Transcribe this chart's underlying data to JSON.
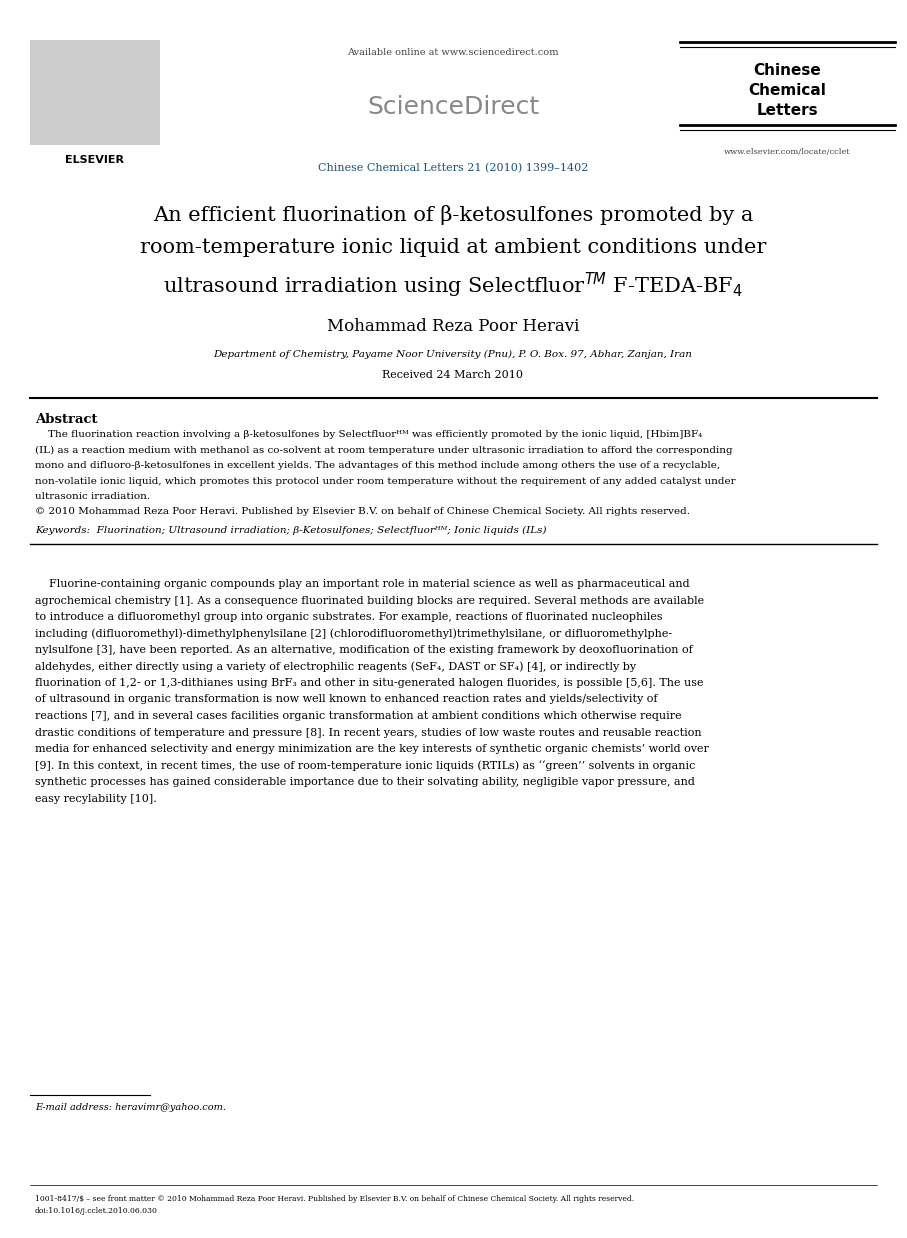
{
  "bg_color": "#ffffff",
  "page_width": 9.07,
  "page_height": 12.38,
  "header": {
    "available_online": "Available online at www.sciencedirect.com",
    "sciencedirect": "ScienceDirect",
    "journal_info": "Chinese Chemical Letters 21 (2010) 1399–1402",
    "journal_name_line1": "Chinese",
    "journal_name_line2": "Chemical",
    "journal_name_line3": "Letters",
    "elsevier": "ELSEVIER",
    "url": "www.elsevier.com/locate/cclet"
  },
  "title_line1": "An efficient fluorination of β-ketosulfones promoted by a",
  "title_line2": "room-temperature ionic liquid at ambient conditions under",
  "title_line3_part1": "ultrasound irradiation using Selectfluor",
  "title_line3_sup": "TM",
  "title_line3_part2": " F-TEDA-BF",
  "title_line3_sub": "4",
  "author": "Mohammad Reza Poor Heravi",
  "affiliation": "Department of Chemistry, Payame Noor University (Pnu), P. O. Box. 97, Abhar, Zanjan, Iran",
  "received": "Received 24 March 2010",
  "abstract_title": "Abstract",
  "abstract_text_lines": [
    "    The fluorination reaction involving a β-ketosulfones by Selectfluorᴴᴹ was efficiently promoted by the ionic liquid, [Hbim]BF₄",
    "(IL) as a reaction medium with methanol as co-solvent at room temperature under ultrasonic irradiation to afford the corresponding",
    "mono and difluoro-β-ketosulfones in excellent yields. The advantages of this method include among others the use of a recyclable,",
    "non-volatile ionic liquid, which promotes this protocol under room temperature without the requirement of any added catalyst under",
    "ultrasonic irradiation.",
    "© 2010 Mohammad Reza Poor Heravi. Published by Elsevier B.V. on behalf of Chinese Chemical Society. All rights reserved."
  ],
  "keywords": "Keywords:  Fluorination; Ultrasound irradiation; β-Ketosulfones; Selectfluorᴴᴹ; Ionic liquids (ILs)",
  "body_text_lines": [
    "    Fluorine-containing organic compounds play an important role in material science as well as pharmaceutical and",
    "agrochemical chemistry [1]. As a consequence fluorinated building blocks are required. Several methods are available",
    "to introduce a difluoromethyl group into organic substrates. For example, reactions of fluorinated nucleophiles",
    "including (difluoromethyl)-dimethylphenylsilane [2] (chlorodifluoromethyl)trimethylsilane, or difluoromethylphe-",
    "nylsulfone [3], have been reported. As an alternative, modification of the existing framework by deoxofluorination of",
    "aldehydes, either directly using a variety of electrophilic reagents (SeF₄, DAST or SF₄) [4], or indirectly by",
    "fluorination of 1,2- or 1,3-dithianes using BrF₃ and other in situ-generated halogen fluorides, is possible [5,6]. The use",
    "of ultrasound in organic transformation is now well known to enhanced reaction rates and yields/selectivity of",
    "reactions [7], and in several cases facilities organic transformation at ambient conditions which otherwise require",
    "drastic conditions of temperature and pressure [8]. In recent years, studies of low waste routes and reusable reaction",
    "media for enhanced selectivity and energy minimization are the key interests of synthetic organic chemists’ world over",
    "[9]. In this context, in recent times, the use of room-temperature ionic liquids (RTILs) as ‘‘green’’ solvents in organic",
    "synthetic processes has gained considerable importance due to their solvating ability, negligible vapor pressure, and",
    "easy recylability [10]."
  ],
  "footnote_email": "E-mail address: heravimr@yahoo.com.",
  "footer_line1": "1001-8417/$ – see front matter © 2010 Mohammad Reza Poor Heravi. Published by Elsevier B.V. on behalf of Chinese Chemical Society. All rights reserved.",
  "footer_line2": "doi:10.1016/j.cclet.2010.06.030",
  "color_blue": "#1a5276",
  "color_black": "#000000",
  "color_gray": "#666666"
}
